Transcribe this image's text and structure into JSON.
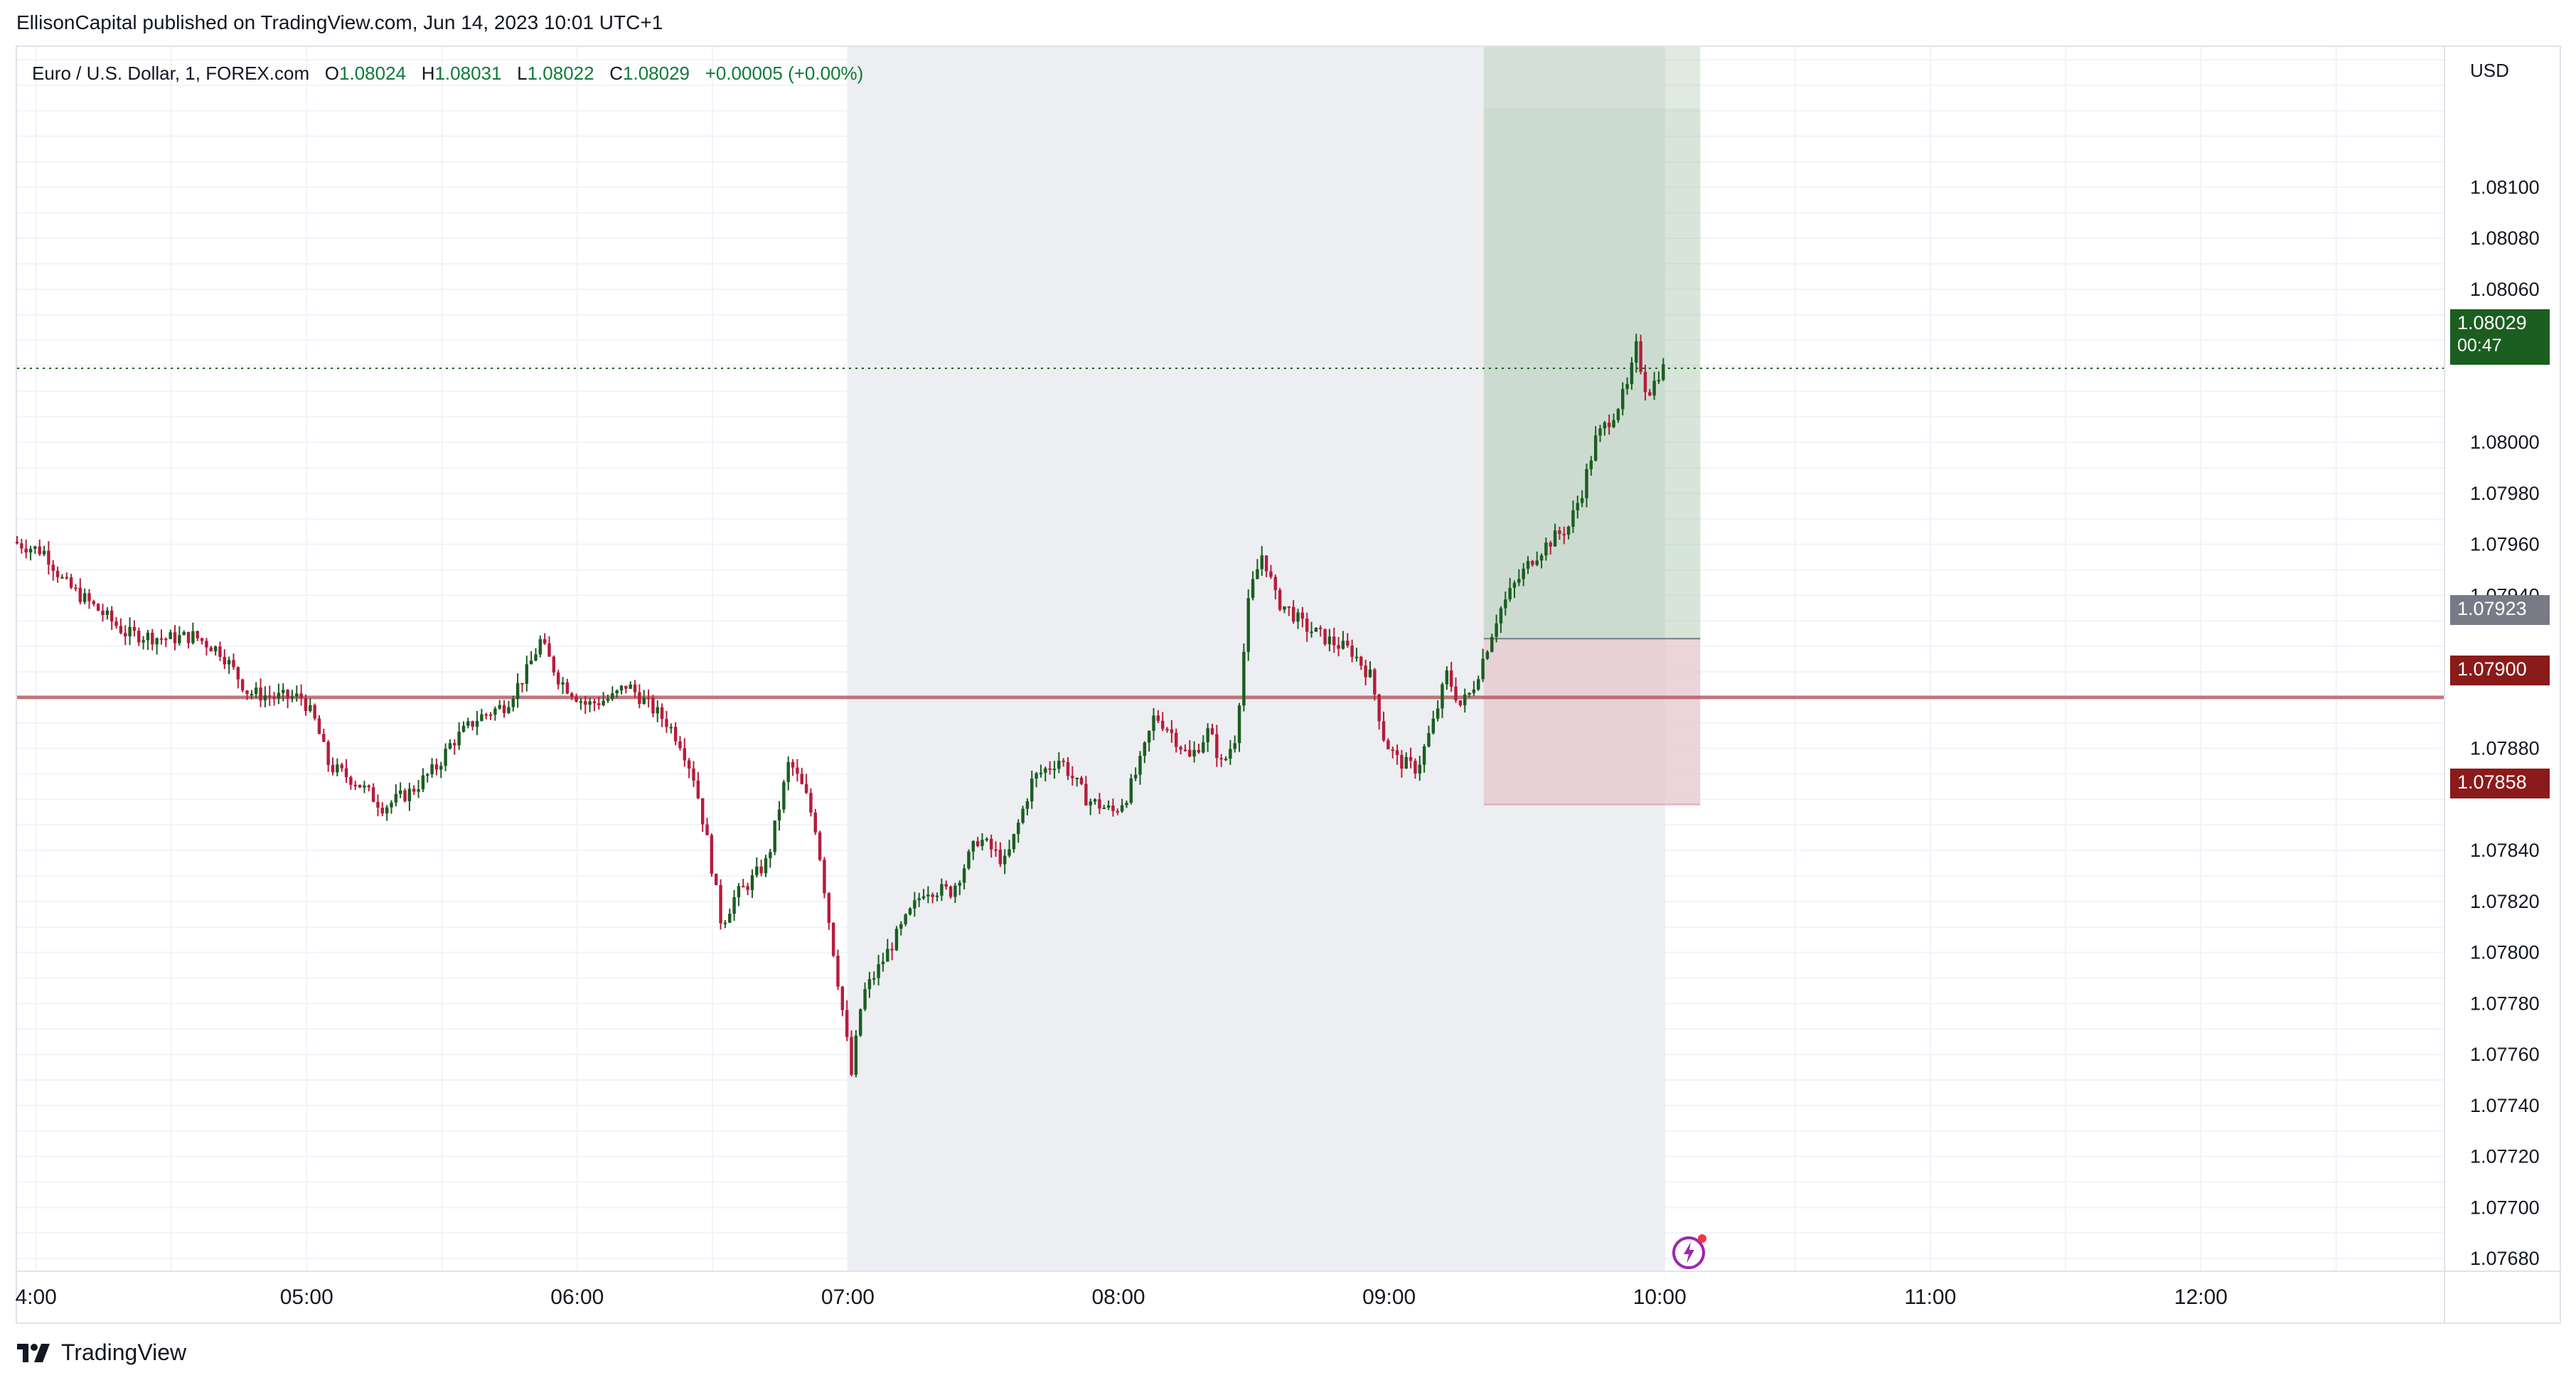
{
  "publisher_text": "EllisonCapital published on TradingView.com, Jun 14, 2023 10:01 UTC+1",
  "legend": {
    "symbol": "Euro / U.S. Dollar, 1, FOREX.com",
    "open_label": "O",
    "open": "1.08024",
    "high_label": "H",
    "high": "1.08031",
    "low_label": "L",
    "low": "1.08022",
    "close_label": "C",
    "close": "1.08029",
    "change": "+0.00005 (+0.00%)"
  },
  "currency_label": "USD",
  "badges": {
    "last_price": "1.08029",
    "countdown": "00:47",
    "entry": "1.07923",
    "level": "1.07900",
    "stop": "1.07858"
  },
  "brand": {
    "name": "TradingView",
    "logo_icon": "tradingview-logo-icon"
  },
  "colors": {
    "up": "#1b5e20",
    "down": "#b71c3c",
    "session_shade": "#eceef1",
    "target_zone": "#a7c4a8",
    "stop_zone": "#e6c7cd",
    "level_line": "#b3545e"
  },
  "chart_data": {
    "type": "candlestick",
    "symbol": "Euro / U.S. Dollar",
    "interval": "1",
    "x_ticks": [
      "4:00",
      "05:00",
      "06:00",
      "07:00",
      "08:00",
      "09:00",
      "10:00",
      "11:00",
      "12:00"
    ],
    "y_ticks": [
      1.081,
      1.0808,
      1.0806,
      1.0804,
      1.08,
      1.0798,
      1.0796,
      1.0794,
      1.0788,
      1.0784,
      1.0782,
      1.078,
      1.0778,
      1.0776,
      1.0774,
      1.0772,
      1.077,
      1.0768
    ],
    "ylim": [
      1.07675,
      1.08155
    ],
    "xlim_hours": [
      3.93,
      12.9
    ],
    "current_price": 1.08029,
    "horizontal_level": 1.079,
    "session_shade_hours": [
      7.0,
      10.02
    ],
    "position": {
      "type": "long",
      "start_hour": 9.35,
      "end_hour": 10.15,
      "entry": 1.07923,
      "target": 1.08131,
      "stop": 1.07858
    },
    "price_path": [
      [
        3.93,
        1.07961
      ],
      [
        4.05,
        1.07957
      ],
      [
        4.12,
        1.07945
      ],
      [
        4.25,
        1.07934
      ],
      [
        4.35,
        1.07925
      ],
      [
        4.5,
        1.07923
      ],
      [
        4.6,
        1.07924
      ],
      [
        4.7,
        1.07918
      ],
      [
        4.8,
        1.07902
      ],
      [
        4.9,
        1.079
      ],
      [
        5.0,
        1.079
      ],
      [
        5.05,
        1.0789
      ],
      [
        5.1,
        1.07873
      ],
      [
        5.2,
        1.07867
      ],
      [
        5.3,
        1.07857
      ],
      [
        5.4,
        1.07863
      ],
      [
        5.5,
        1.07873
      ],
      [
        5.55,
        1.07882
      ],
      [
        5.65,
        1.07892
      ],
      [
        5.75,
        1.07897
      ],
      [
        5.83,
        1.0791
      ],
      [
        5.88,
        1.07922
      ],
      [
        5.95,
        1.07907
      ],
      [
        6.05,
        1.07897
      ],
      [
        6.15,
        1.079
      ],
      [
        6.2,
        1.07905
      ],
      [
        6.3,
        1.07895
      ],
      [
        6.35,
        1.0789
      ],
      [
        6.4,
        1.07882
      ],
      [
        6.45,
        1.07868
      ],
      [
        6.5,
        1.07842
      ],
      [
        6.55,
        1.07811
      ],
      [
        6.6,
        1.07822
      ],
      [
        6.65,
        1.07827
      ],
      [
        6.72,
        1.07836
      ],
      [
        6.8,
        1.07875
      ],
      [
        6.86,
        1.07862
      ],
      [
        6.9,
        1.07848
      ],
      [
        6.95,
        1.0781
      ],
      [
        7.0,
        1.07775
      ],
      [
        7.03,
        1.07752
      ],
      [
        7.07,
        1.07783
      ],
      [
        7.12,
        1.07792
      ],
      [
        7.2,
        1.07807
      ],
      [
        7.3,
        1.07825
      ],
      [
        7.4,
        1.07824
      ],
      [
        7.5,
        1.07845
      ],
      [
        7.6,
        1.07835
      ],
      [
        7.7,
        1.07868
      ],
      [
        7.8,
        1.07876
      ],
      [
        7.9,
        1.0786
      ],
      [
        8.0,
        1.07855
      ],
      [
        8.05,
        1.07862
      ],
      [
        8.1,
        1.07875
      ],
      [
        8.15,
        1.07893
      ],
      [
        8.2,
        1.07888
      ],
      [
        8.28,
        1.07876
      ],
      [
        8.35,
        1.07887
      ],
      [
        8.4,
        1.07873
      ],
      [
        8.45,
        1.07885
      ],
      [
        8.5,
        1.0794
      ],
      [
        8.55,
        1.07957
      ],
      [
        8.6,
        1.07938
      ],
      [
        8.65,
        1.07934
      ],
      [
        8.7,
        1.07928
      ],
      [
        8.8,
        1.07922
      ],
      [
        8.88,
        1.07918
      ],
      [
        8.95,
        1.07908
      ],
      [
        9.0,
        1.07883
      ],
      [
        9.05,
        1.07875
      ],
      [
        9.12,
        1.07872
      ],
      [
        9.18,
        1.0789
      ],
      [
        9.23,
        1.07909
      ],
      [
        9.28,
        1.07897
      ],
      [
        9.32,
        1.07902
      ],
      [
        9.37,
        1.07917
      ],
      [
        9.42,
        1.07933
      ],
      [
        9.48,
        1.07944
      ],
      [
        9.55,
        1.07955
      ],
      [
        9.62,
        1.07962
      ],
      [
        9.68,
        1.07967
      ],
      [
        9.73,
        1.07981
      ],
      [
        9.78,
        1.08001
      ],
      [
        9.85,
        1.08012
      ],
      [
        9.9,
        1.08022
      ],
      [
        9.93,
        1.08037
      ],
      [
        9.97,
        1.08019
      ],
      [
        10.0,
        1.08024
      ],
      [
        10.02,
        1.08029
      ]
    ]
  }
}
